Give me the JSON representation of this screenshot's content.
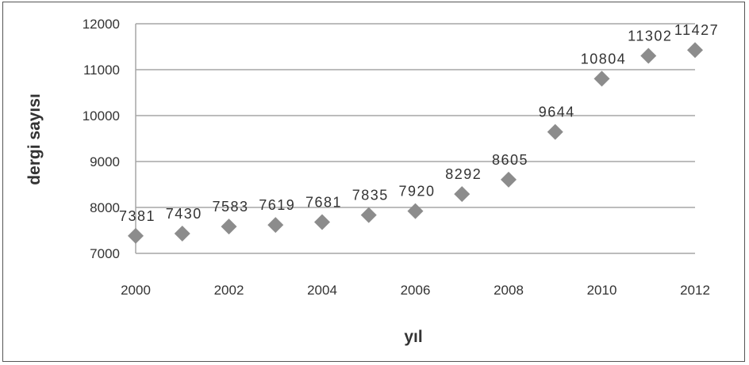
{
  "chart_data": {
    "type": "scatter",
    "title": "",
    "xlabel": "yıl",
    "ylabel": "dergi sayısı",
    "xlim": [
      2000,
      2012
    ],
    "ylim": [
      7000,
      12000
    ],
    "x_ticks": [
      2000,
      2002,
      2004,
      2006,
      2008,
      2010,
      2012
    ],
    "y_ticks": [
      7000,
      8000,
      9000,
      10000,
      11000,
      12000
    ],
    "grid": {
      "horizontal": true,
      "vertical": false
    },
    "legend": "none",
    "marker": "diamond",
    "marker_color": "#8c8c8c",
    "gridline_color": "#a6a6a6",
    "x": [
      2000,
      2001,
      2002,
      2003,
      2004,
      2005,
      2006,
      2007,
      2008,
      2009,
      2010,
      2011,
      2012
    ],
    "y": [
      7381,
      7430,
      7583,
      7619,
      7681,
      7835,
      7920,
      8292,
      8605,
      9644,
      10804,
      11302,
      11427
    ]
  }
}
